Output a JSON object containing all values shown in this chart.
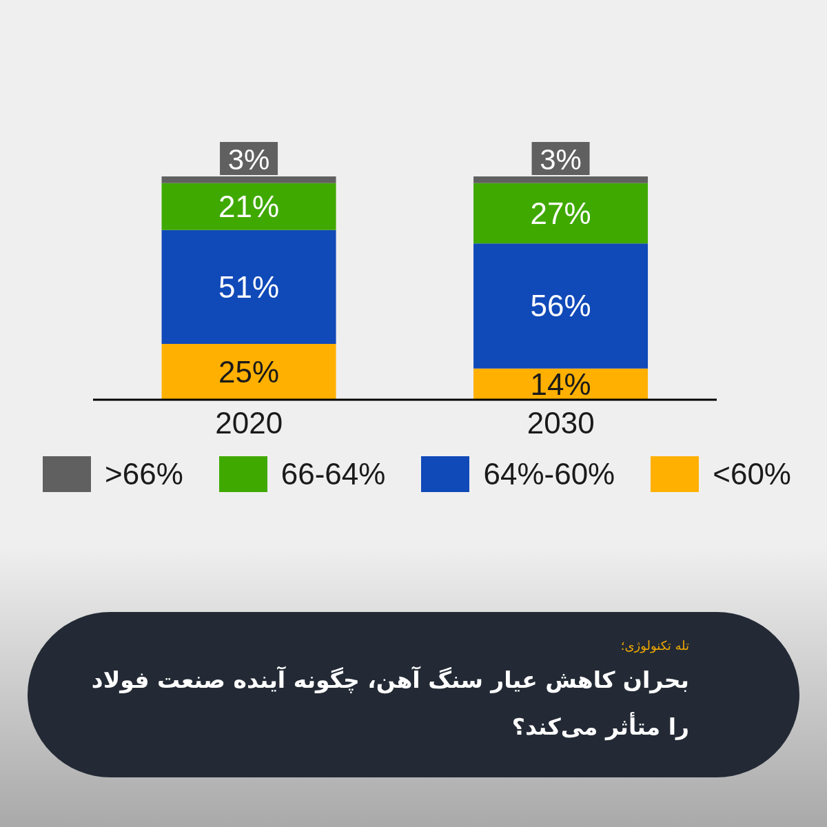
{
  "chart_data": {
    "type": "bar",
    "stacked": true,
    "title": "بحران کاهش عیار سنگ آهن، چگونه آینده صنعت فولاد را متأثر می‌کند؟",
    "subtitle": "تله تکنولوژی؛",
    "categories": [
      "2020",
      "2030"
    ],
    "series": [
      {
        "name": "<60%",
        "color": "#ffb000",
        "values": [
          25,
          14
        ],
        "value_labels": [
          "25%",
          "14%"
        ]
      },
      {
        "name": "64%-60%",
        "color": "#1049b8",
        "values": [
          51,
          56
        ],
        "value_labels": [
          "51%",
          "56%"
        ]
      },
      {
        "name": "66-64%",
        "color": "#3fa900",
        "values": [
          21,
          27
        ],
        "value_labels": [
          "21%",
          "27%"
        ]
      },
      {
        "name": ">66%",
        "color": "#606060",
        "values": [
          3,
          3
        ],
        "value_labels": [
          "3%",
          "3%"
        ]
      }
    ],
    "legend": "bottom",
    "tick_labels": "x"
  }
}
